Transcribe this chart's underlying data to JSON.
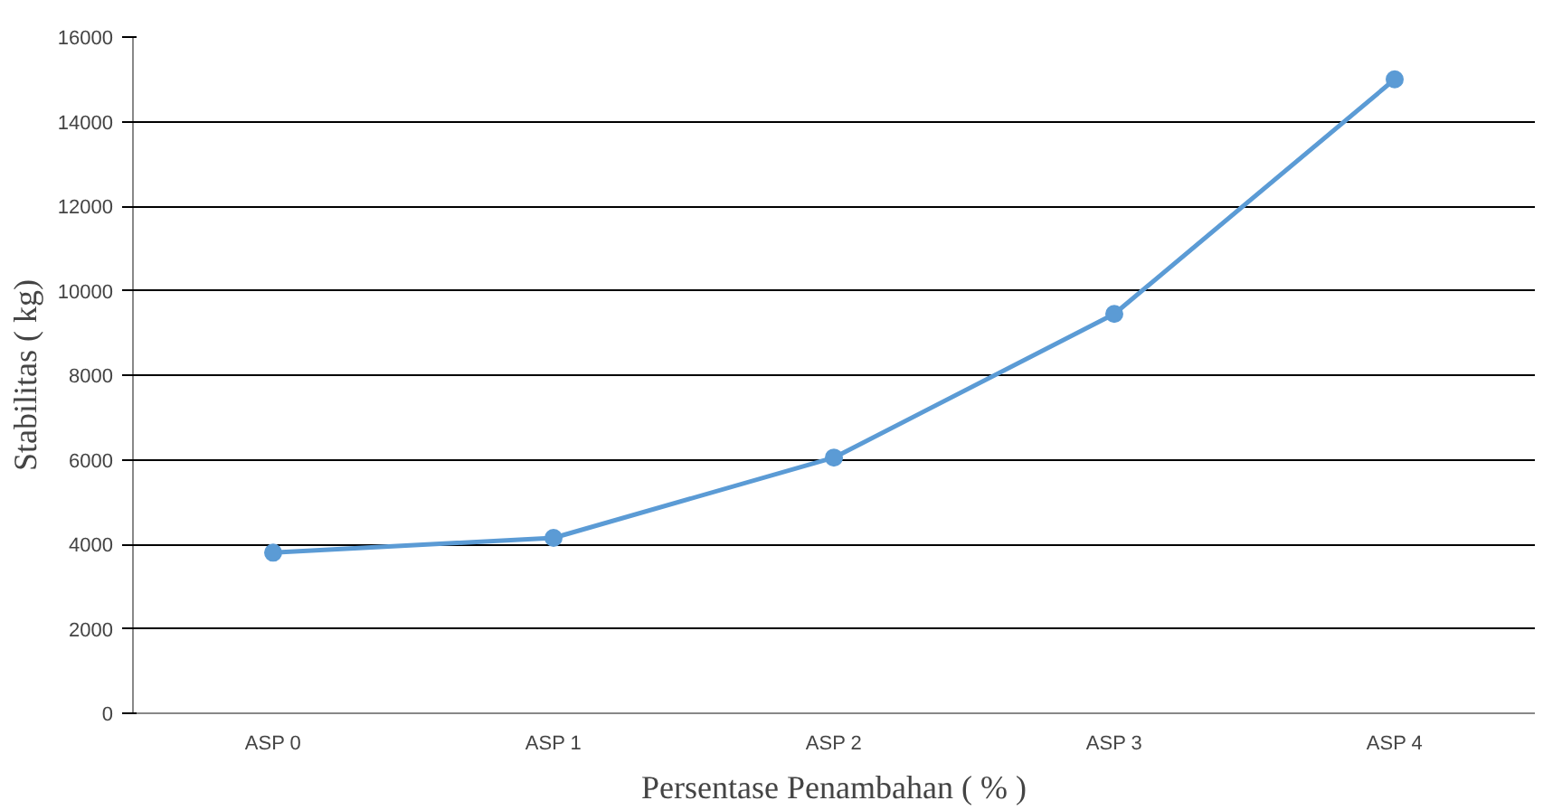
{
  "chart_data": {
    "type": "line",
    "xlabel": "Persentase Penambahan ( % )",
    "ylabel": "Stabilitas ( kg)",
    "categories": [
      "ASP 0",
      "ASP 1",
      "ASP 2",
      "ASP 3",
      "ASP 4"
    ],
    "series": [
      {
        "color": "#5b9bd5",
        "values": [
          3800,
          4150,
          6050,
          9450,
          15000
        ]
      }
    ],
    "ylim": [
      0,
      16000
    ],
    "yticks": [
      0,
      2000,
      4000,
      6000,
      8000,
      10000,
      12000,
      14000,
      16000
    ],
    "grid": "y",
    "marker": "circle",
    "line_style": "solid"
  }
}
